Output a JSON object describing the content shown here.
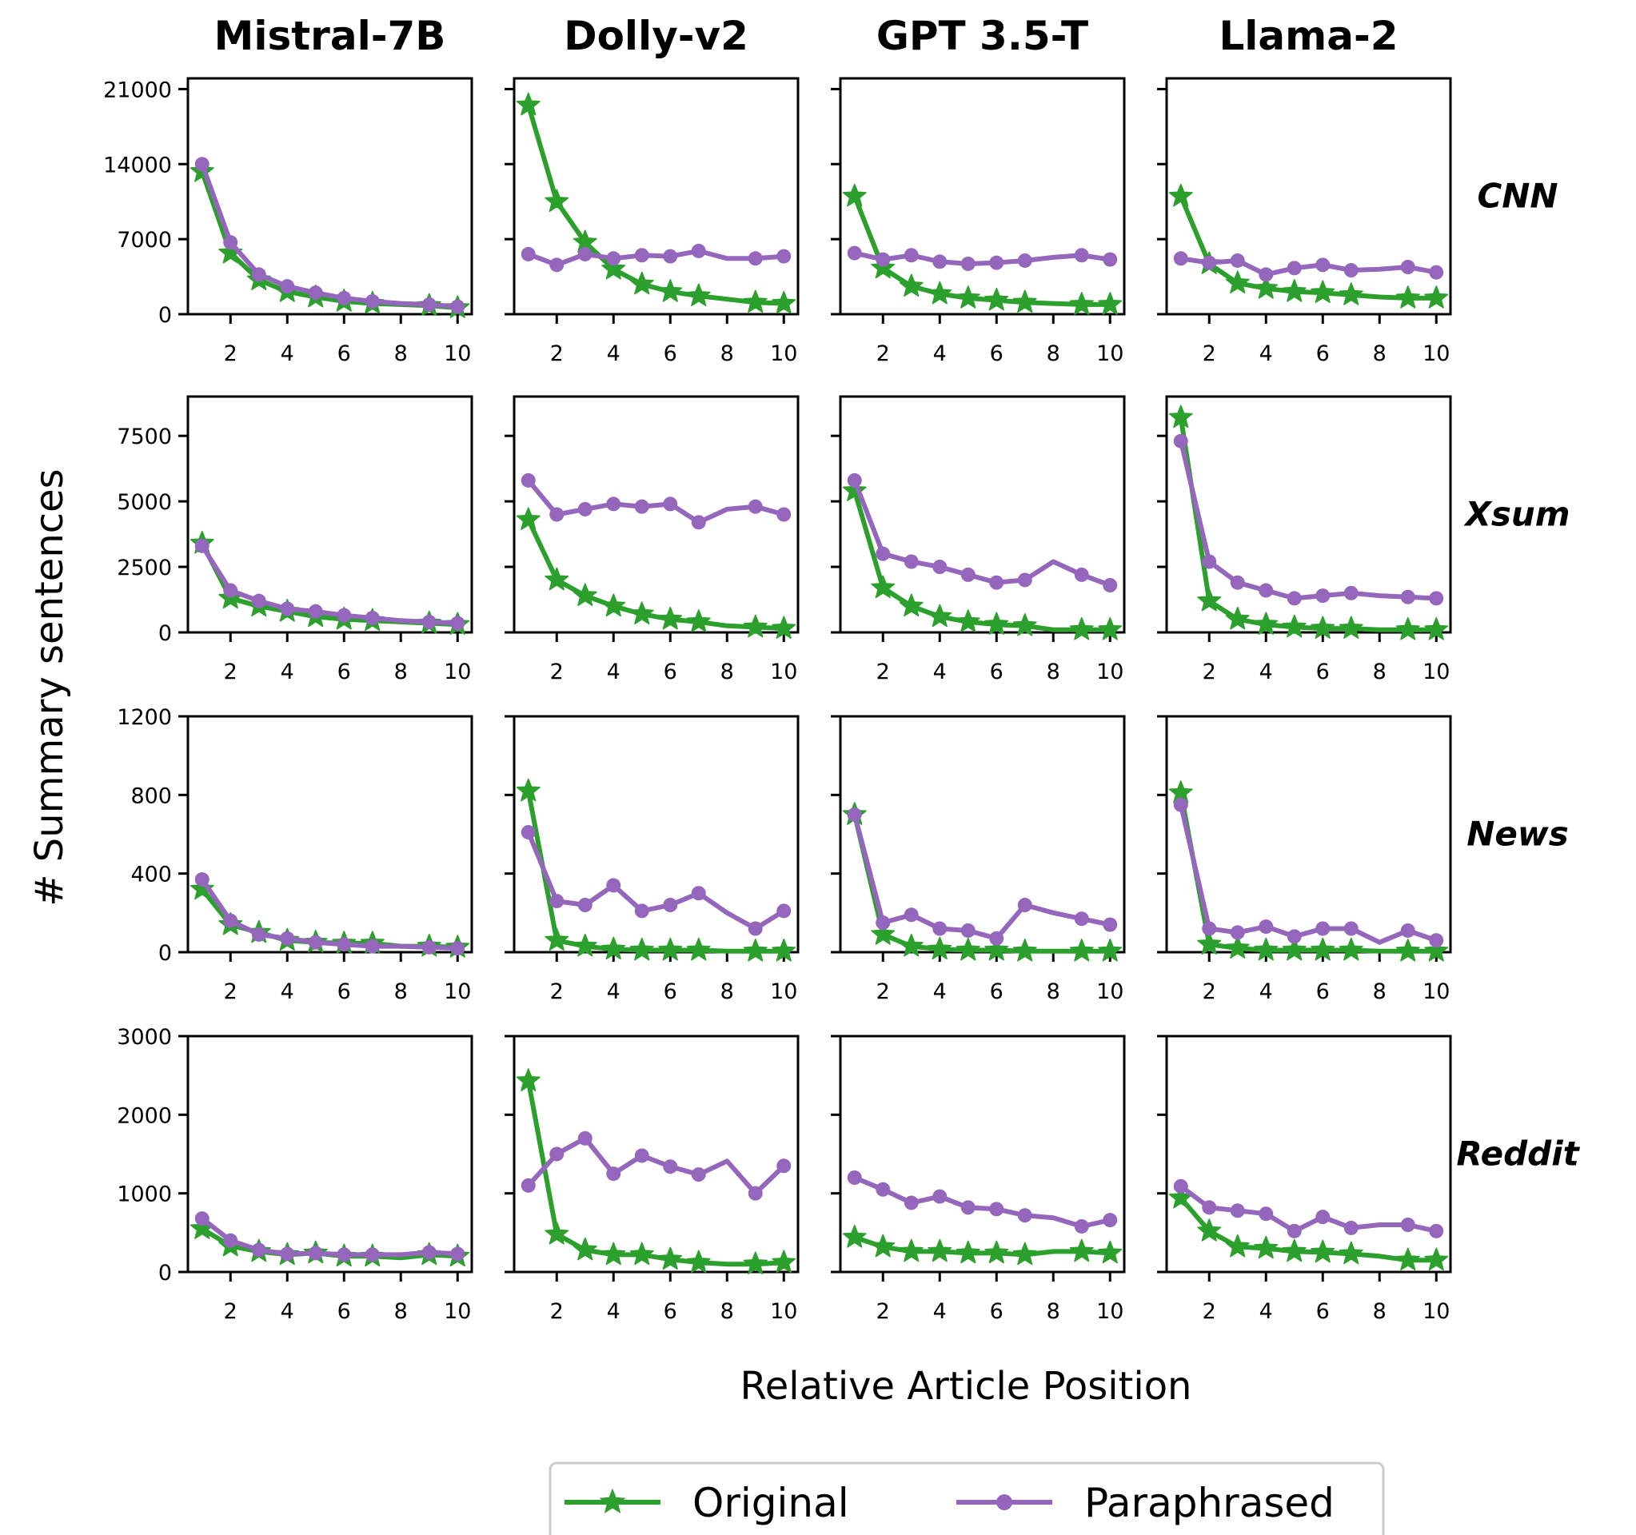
{
  "chart_data": {
    "type": "line",
    "xlabel": "Relative Article Position",
    "ylabel": "# Summary sentences",
    "columns": [
      "Mistral-7B",
      "Dolly-v2",
      "GPT 3.5-T",
      "Llama-2"
    ],
    "rows": [
      {
        "name": "CNN",
        "ylim": [
          0,
          22000
        ],
        "yticks": [
          0,
          7000,
          14000,
          21000
        ],
        "yticklabels": [
          "0",
          "7000",
          "14000",
          "21000"
        ]
      },
      {
        "name": "Xsum",
        "ylim": [
          0,
          9000
        ],
        "yticks": [
          0,
          2500,
          5000,
          7500
        ],
        "yticklabels": [
          "0",
          "2500",
          "5000",
          "7500"
        ]
      },
      {
        "name": "News",
        "ylim": [
          0,
          1200
        ],
        "yticks": [
          0,
          400,
          800,
          1200
        ],
        "yticklabels": [
          "0",
          "400",
          "800",
          "1200"
        ]
      },
      {
        "name": "Reddit",
        "ylim": [
          0,
          3000
        ],
        "yticks": [
          0,
          1000,
          2000,
          3000
        ],
        "yticklabels": [
          "0",
          "1000",
          "2000",
          "3000"
        ]
      }
    ],
    "xlim": [
      0.5,
      10.5
    ],
    "xticks": [
      2,
      4,
      6,
      8,
      10
    ],
    "xticklabels": [
      "2",
      "4",
      "6",
      "8",
      "10"
    ],
    "legend": {
      "placement": "bottom-center",
      "entries": [
        "Original",
        "Paraphrased"
      ]
    },
    "series_styles": {
      "Original": {
        "color": "#2ca02c",
        "marker": "star"
      },
      "Paraphrased": {
        "color": "#9467bd",
        "marker": "circle"
      }
    },
    "x": [
      1,
      2,
      3,
      4,
      5,
      6,
      7,
      8,
      9,
      10
    ],
    "markers_at": [
      1,
      2,
      3,
      4,
      5,
      6,
      7,
      9,
      10
    ],
    "panels": [
      {
        "row": "CNN",
        "column": "Mistral-7B",
        "series": [
          {
            "name": "Original",
            "values": [
              13300,
              5700,
              3200,
              2100,
              1600,
              1200,
              1000,
              900,
              800,
              600
            ]
          },
          {
            "name": "Paraphrased",
            "values": [
              14000,
              6700,
              3700,
              2600,
              2000,
              1500,
              1200,
              1000,
              900,
              700
            ]
          }
        ]
      },
      {
        "row": "CNN",
        "column": "Dolly-v2",
        "series": [
          {
            "name": "Original",
            "values": [
              19500,
              10500,
              6700,
              4200,
              2800,
              2100,
              1700,
              1400,
              1100,
              1000
            ]
          },
          {
            "name": "Paraphrased",
            "values": [
              5600,
              4600,
              5600,
              5200,
              5500,
              5400,
              5900,
              5200,
              5200,
              5400
            ]
          }
        ]
      },
      {
        "row": "CNN",
        "column": "GPT 3.5-T",
        "series": [
          {
            "name": "Original",
            "values": [
              11000,
              4300,
              2600,
              1900,
              1500,
              1300,
              1100,
              1000,
              900,
              900
            ]
          },
          {
            "name": "Paraphrased",
            "values": [
              5700,
              5100,
              5500,
              4900,
              4700,
              4800,
              5000,
              5300,
              5500,
              5100
            ]
          }
        ]
      },
      {
        "row": "CNN",
        "column": "Llama-2",
        "series": [
          {
            "name": "Original",
            "values": [
              11000,
              4700,
              2900,
              2400,
              2100,
              2000,
              1800,
              1600,
              1500,
              1500
            ]
          },
          {
            "name": "Paraphrased",
            "values": [
              5200,
              4800,
              5000,
              3700,
              4300,
              4600,
              4100,
              4200,
              4400,
              3900
            ]
          }
        ]
      },
      {
        "row": "Xsum",
        "column": "Mistral-7B",
        "series": [
          {
            "name": "Original",
            "values": [
              3400,
              1300,
              1000,
              800,
              600,
              500,
              450,
              400,
              350,
              300
            ]
          },
          {
            "name": "Paraphrased",
            "values": [
              3300,
              1600,
              1200,
              900,
              800,
              650,
              550,
              450,
              400,
              350
            ]
          }
        ]
      },
      {
        "row": "Xsum",
        "column": "Dolly-v2",
        "series": [
          {
            "name": "Original",
            "values": [
              4300,
              2000,
              1400,
              1000,
              700,
              500,
              400,
              250,
              200,
              150
            ]
          },
          {
            "name": "Paraphrased",
            "values": [
              5800,
              4500,
              4700,
              4900,
              4800,
              4900,
              4200,
              4700,
              4800,
              4500
            ]
          }
        ]
      },
      {
        "row": "Xsum",
        "column": "GPT 3.5-T",
        "series": [
          {
            "name": "Original",
            "values": [
              5400,
              1700,
              1000,
              600,
              400,
              300,
              250,
              100,
              100,
              100
            ]
          },
          {
            "name": "Paraphrased",
            "values": [
              5800,
              3000,
              2700,
              2500,
              2200,
              1900,
              2000,
              2700,
              2200,
              1800
            ]
          }
        ]
      },
      {
        "row": "Xsum",
        "column": "Llama-2",
        "series": [
          {
            "name": "Original",
            "values": [
              8200,
              1200,
              500,
              300,
              200,
              150,
              150,
              100,
              100,
              100
            ]
          },
          {
            "name": "Paraphrased",
            "values": [
              7300,
              2700,
              1900,
              1600,
              1300,
              1400,
              1500,
              1400,
              1350,
              1300
            ]
          }
        ]
      },
      {
        "row": "News",
        "column": "Mistral-7B",
        "series": [
          {
            "name": "Original",
            "values": [
              320,
              140,
              100,
              60,
              50,
              45,
              45,
              30,
              30,
              25
            ]
          },
          {
            "name": "Paraphrased",
            "values": [
              370,
              160,
              90,
              70,
              50,
              40,
              30,
              30,
              25,
              20
            ]
          }
        ]
      },
      {
        "row": "News",
        "column": "Dolly-v2",
        "series": [
          {
            "name": "Original",
            "values": [
              820,
              60,
              30,
              15,
              10,
              10,
              10,
              5,
              5,
              5
            ]
          },
          {
            "name": "Paraphrased",
            "values": [
              610,
              260,
              240,
              340,
              210,
              240,
              300,
              200,
              120,
              210
            ]
          }
        ]
      },
      {
        "row": "News",
        "column": "GPT 3.5-T",
        "series": [
          {
            "name": "Original",
            "values": [
              700,
              90,
              30,
              15,
              10,
              10,
              5,
              5,
              5,
              5
            ]
          },
          {
            "name": "Paraphrased",
            "values": [
              700,
              150,
              190,
              120,
              110,
              70,
              240,
              200,
              170,
              140
            ]
          }
        ]
      },
      {
        "row": "News",
        "column": "Llama-2",
        "series": [
          {
            "name": "Original",
            "values": [
              810,
              40,
              20,
              10,
              10,
              10,
              10,
              5,
              5,
              5
            ]
          },
          {
            "name": "Paraphrased",
            "values": [
              750,
              120,
              100,
              130,
              80,
              120,
              120,
              50,
              110,
              60
            ]
          }
        ]
      },
      {
        "row": "Reddit",
        "column": "Mistral-7B",
        "series": [
          {
            "name": "Original",
            "values": [
              550,
              330,
              260,
              220,
              240,
              200,
              200,
              180,
              220,
              200
            ]
          },
          {
            "name": "Paraphrased",
            "values": [
              680,
              400,
              280,
              230,
              240,
              220,
              220,
              220,
              250,
              230
            ]
          }
        ]
      },
      {
        "row": "Reddit",
        "column": "Dolly-v2",
        "series": [
          {
            "name": "Original",
            "values": [
              2430,
              480,
              280,
              220,
              220,
              160,
              120,
              100,
              100,
              120
            ]
          },
          {
            "name": "Paraphrased",
            "values": [
              1100,
              1500,
              1700,
              1250,
              1480,
              1340,
              1240,
              1410,
              1000,
              1350
            ]
          }
        ]
      },
      {
        "row": "Reddit",
        "column": "GPT 3.5-T",
        "series": [
          {
            "name": "Original",
            "values": [
              440,
              320,
              260,
              260,
              240,
              240,
              220,
              260,
              260,
              240
            ]
          },
          {
            "name": "Paraphrased",
            "values": [
              1200,
              1050,
              880,
              960,
              820,
              800,
              720,
              690,
              580,
              660
            ]
          }
        ]
      },
      {
        "row": "Reddit",
        "column": "Llama-2",
        "series": [
          {
            "name": "Original",
            "values": [
              940,
              520,
              320,
              300,
              260,
              250,
              230,
              200,
              150,
              150
            ]
          },
          {
            "name": "Paraphrased",
            "values": [
              1090,
              820,
              780,
              740,
              520,
              700,
              560,
              600,
              600,
              520
            ]
          }
        ]
      }
    ]
  }
}
